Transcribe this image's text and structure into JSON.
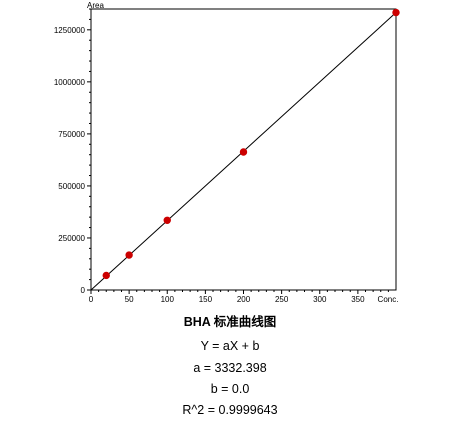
{
  "chart_data": {
    "type": "scatter",
    "title": "BHA 标准曲线图",
    "xlabel": "Conc.",
    "ylabel": "Area",
    "xlim": [
      0,
      400
    ],
    "ylim": [
      0,
      1350000
    ],
    "x_ticks": [
      0,
      50,
      100,
      150,
      200,
      250,
      300,
      350
    ],
    "x_tick_labels": [
      "0",
      "50",
      "100",
      "150",
      "200",
      "250",
      "300",
      "350"
    ],
    "y_ticks": [
      0,
      250000,
      500000,
      750000,
      1000000,
      1250000
    ],
    "y_tick_labels": [
      "0",
      "250000",
      "500000",
      "750000",
      "1000000",
      "1250000"
    ],
    "grid": false,
    "points": [
      {
        "x": 20,
        "y": 70000
      },
      {
        "x": 50,
        "y": 168000
      },
      {
        "x": 100,
        "y": 335000
      },
      {
        "x": 200,
        "y": 663000
      },
      {
        "x": 400,
        "y": 1333000
      }
    ],
    "fit": {
      "type": "linear",
      "a": 3332.398,
      "b": 0.0
    },
    "point_color": "#cc0000",
    "line_color": "#000000"
  },
  "equation": {
    "formula": "Y = aX + b",
    "a_text": "a = 3332.398",
    "b_text": "b = 0.0",
    "r2_text": "R^2 = 0.9999643"
  }
}
